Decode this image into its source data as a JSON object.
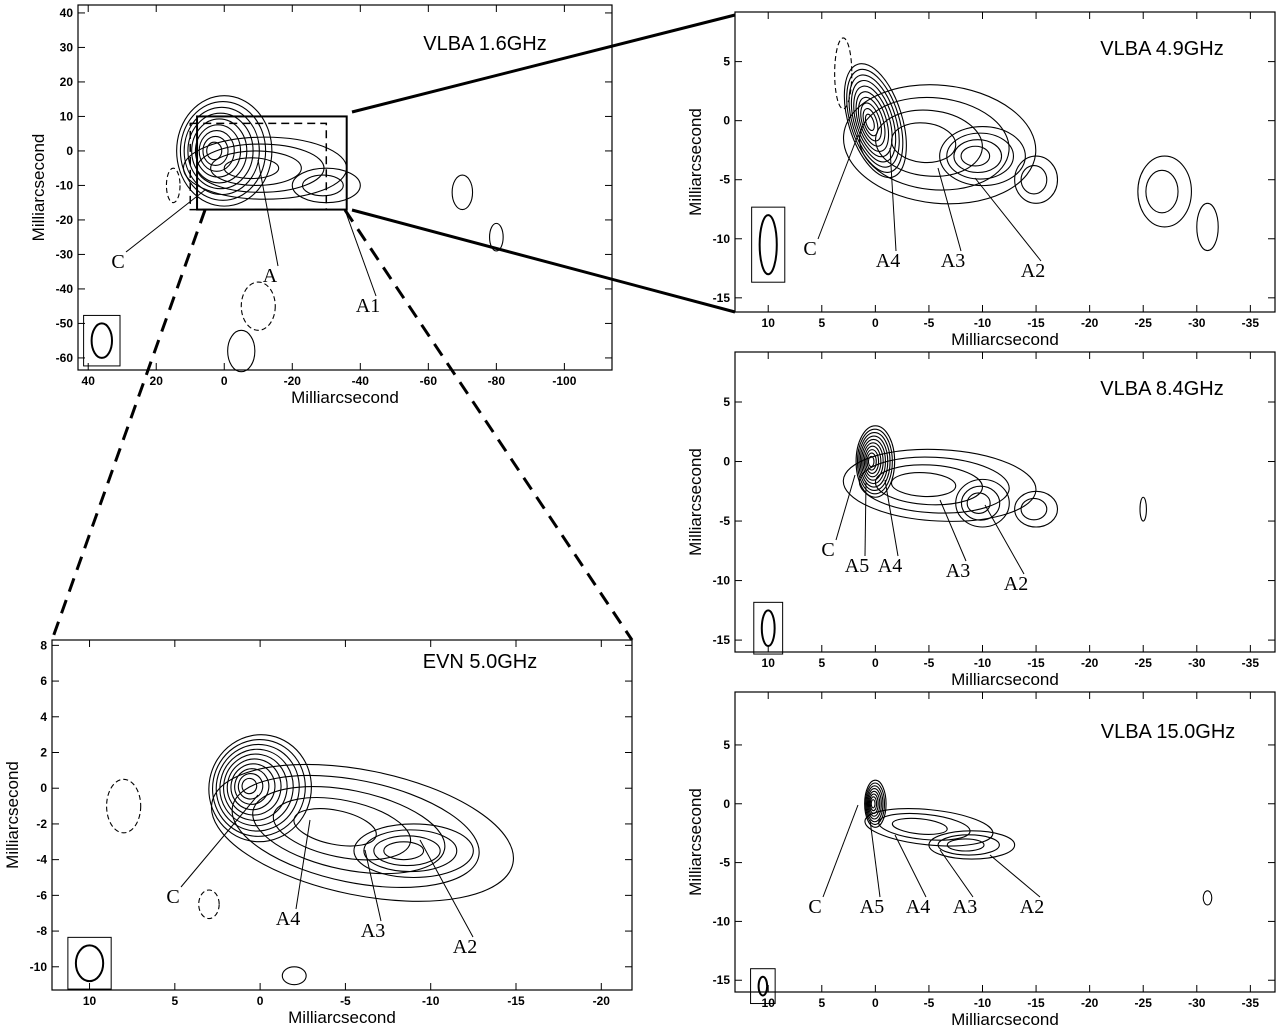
{
  "chart_data": [
    {
      "type": "contour",
      "title": "VLBA 1.6GHz",
      "xlabel": "Milliarcsecond",
      "ylabel": "Milliarcsecond",
      "xlim": [
        43,
        -114
      ],
      "ylim": [
        -63.5,
        42.3
      ],
      "xticks": [
        40,
        20,
        0,
        -20,
        -40,
        -60,
        -80,
        -100
      ],
      "yticks": [
        40,
        30,
        20,
        10,
        0,
        -10,
        -20,
        -30,
        -40,
        -50,
        -60
      ],
      "annotations": [
        "C",
        "A",
        "A1"
      ]
    },
    {
      "type": "contour",
      "title": "VLBA 4.9GHz",
      "xlabel": "Milliarcsecond",
      "ylabel": "Milliarcsecond",
      "xlim": [
        13.1,
        -37.3
      ],
      "ylim": [
        -16.2,
        9.2
      ],
      "xticks": [
        10,
        5,
        0,
        -5,
        -10,
        -15,
        -20,
        -25,
        -30,
        -35
      ],
      "yticks": [
        5,
        0,
        -5,
        -10,
        -15
      ],
      "annotations": [
        "C",
        "A4",
        "A3",
        "A2"
      ]
    },
    {
      "type": "contour",
      "title": "VLBA 8.4GHz",
      "xlabel": "Milliarcsecond",
      "ylabel": "Milliarcsecond",
      "xlim": [
        13.1,
        -37.3
      ],
      "ylim": [
        -16,
        9.2
      ],
      "xticks": [
        10,
        5,
        0,
        -5,
        -10,
        -15,
        -20,
        -25,
        -30,
        -35
      ],
      "yticks": [
        5,
        0,
        -5,
        -10,
        -15
      ],
      "annotations": [
        "C",
        "A5",
        "A4",
        "A3",
        "A2"
      ]
    },
    {
      "type": "contour",
      "title": "VLBA 15.0GHz",
      "xlabel": "Milliarcsecond",
      "ylabel": "Milliarcsecond",
      "xlim": [
        13.1,
        -37.3
      ],
      "ylim": [
        -16,
        9.5
      ],
      "xticks": [
        10,
        5,
        0,
        -5,
        -10,
        -15,
        -20,
        -25,
        -30,
        -35
      ],
      "yticks": [
        5,
        0,
        -5,
        -10,
        -15
      ],
      "annotations": [
        "C",
        "A5",
        "A4",
        "A3",
        "A2"
      ]
    },
    {
      "type": "contour",
      "title": "EVN 5.0GHz",
      "xlabel": "Milliarcsecond",
      "ylabel": "Milliarcsecond",
      "xlim": [
        12.2,
        -21.8
      ],
      "ylim": [
        -11.3,
        8.3
      ],
      "xticks": [
        10,
        5,
        0,
        -5,
        -10,
        -15,
        -20
      ],
      "yticks": [
        8,
        6,
        4,
        2,
        0,
        -2,
        -4,
        -6,
        -8,
        -10
      ],
      "annotations": [
        "C",
        "A4",
        "A3",
        "A2"
      ]
    }
  ]
}
